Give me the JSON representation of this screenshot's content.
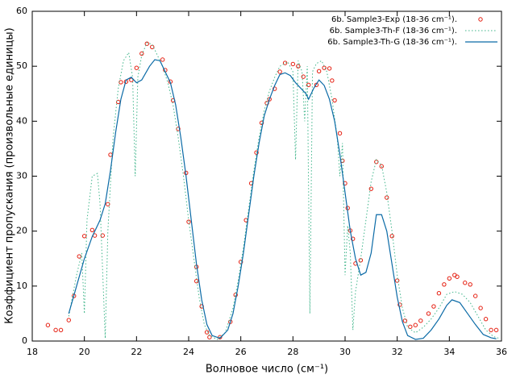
{
  "chart_data": {
    "type": "line",
    "xlabel": "Волновое число (см⁻¹)",
    "ylabel": "Коэффициент пропускания (произвольные единицы)",
    "xlim": [
      18,
      36
    ],
    "xticks": [
      18,
      20,
      22,
      24,
      26,
      28,
      30,
      32,
      34,
      36
    ],
    "ylim": [
      0,
      60
    ],
    "yticks": [
      0,
      10,
      20,
      30,
      40,
      50,
      60
    ],
    "grid": false,
    "legend": "top-right",
    "series": [
      {
        "name": "6b. Sample3-Exp (18-36 cm⁻¹).",
        "color": "#e51e10",
        "style": "points",
        "x": [
          18.6,
          18.9,
          19.1,
          19.4,
          19.6,
          19.8,
          20.0,
          20.3,
          20.4,
          20.7,
          20.9,
          21.0,
          21.3,
          21.4,
          21.6,
          21.8,
          22.0,
          22.2,
          22.4,
          22.6,
          23.0,
          23.1,
          23.3,
          23.4,
          23.6,
          23.9,
          24.0,
          24.3,
          24.3,
          24.5,
          24.7,
          24.8,
          25.2,
          25.6,
          25.8,
          26.0,
          26.2,
          26.4,
          26.6,
          26.8,
          27.0,
          27.1,
          27.3,
          27.5,
          27.7,
          28.0,
          28.2,
          28.4,
          28.6,
          28.9,
          29.0,
          29.2,
          29.4,
          29.5,
          29.6,
          29.8,
          29.9,
          30.0,
          30.1,
          30.2,
          30.3,
          30.4,
          30.6,
          31.0,
          31.2,
          31.4,
          31.6,
          31.8,
          32.0,
          32.1,
          32.3,
          32.5,
          32.7,
          32.9,
          33.2,
          33.4,
          33.6,
          33.8,
          34.0,
          34.2,
          34.3,
          34.6,
          34.8,
          35.0,
          35.2,
          35.4,
          35.6,
          35.8
        ],
        "values": [
          2.9,
          2.0,
          2.0,
          3.8,
          8.2,
          15.4,
          19.1,
          20.2,
          19.2,
          19.2,
          24.9,
          33.9,
          43.5,
          47.1,
          47.2,
          47.5,
          49.7,
          52.3,
          54.1,
          53.5,
          51.2,
          49.3,
          47.2,
          43.8,
          38.6,
          30.6,
          21.7,
          13.5,
          10.9,
          6.3,
          1.6,
          0.7,
          0.7,
          3.5,
          8.4,
          14.4,
          22.0,
          28.7,
          34.3,
          39.7,
          43.3,
          44.0,
          45.9,
          49.0,
          50.6,
          50.4,
          50.0,
          48.1,
          46.6,
          46.6,
          49.1,
          49.7,
          49.6,
          47.4,
          43.8,
          37.8,
          32.8,
          28.7,
          24.2,
          20.1,
          18.6,
          14.1,
          14.7,
          27.7,
          32.6,
          31.8,
          26.1,
          19.1,
          11.0,
          6.6,
          3.7,
          2.6,
          2.9,
          3.7,
          5.0,
          6.3,
          8.7,
          10.3,
          11.4,
          12.0,
          11.7,
          10.6,
          10.3,
          8.2,
          6.0,
          4.0,
          2.0,
          2.0
        ]
      },
      {
        "name": "6b. Sample3-Th-F (18-36 cm⁻¹).",
        "color": "#3fb58a",
        "style": "dotted",
        "x": [
          19.4,
          19.7,
          19.9,
          20.0,
          20.1,
          20.3,
          20.5,
          20.6,
          20.8,
          20.9,
          21.1,
          21.3,
          21.5,
          21.7,
          21.85,
          21.95,
          22.05,
          22.2,
          22.4,
          22.6,
          22.8,
          23.0,
          23.2,
          23.4,
          23.6,
          23.8,
          24.0,
          24.2,
          24.4,
          24.6,
          24.8,
          25.1,
          25.4,
          25.7,
          25.9,
          26.1,
          26.3,
          26.5,
          26.7,
          26.9,
          27.1,
          27.3,
          27.5,
          27.8,
          28.0,
          28.1,
          28.2,
          28.35,
          28.45,
          28.55,
          28.65,
          28.75,
          28.9,
          29.1,
          29.3,
          29.5,
          29.7,
          29.8,
          29.9,
          30.0,
          30.1,
          30.2,
          30.3,
          30.4,
          30.6,
          30.8,
          31.0,
          31.2,
          31.4,
          31.6,
          31.8,
          32.0,
          32.2,
          32.4,
          32.7,
          33.0,
          33.3,
          33.6,
          33.9,
          34.2,
          34.5,
          34.8,
          35.1,
          35.4,
          35.7,
          35.9
        ],
        "values": [
          4.5,
          12,
          16,
          5,
          22,
          30,
          30.5,
          25,
          0.5,
          20,
          37,
          46,
          51,
          52.5,
          48,
          30,
          48,
          52,
          54.3,
          54,
          52,
          50,
          47,
          43,
          37,
          30,
          22,
          15,
          8,
          3,
          1,
          0.3,
          1.5,
          6,
          11,
          17,
          24,
          31,
          37,
          42,
          45.5,
          48,
          50,
          50.8,
          49,
          33,
          51,
          49,
          40,
          50,
          5,
          49,
          50.5,
          51,
          49,
          44,
          37,
          30,
          36,
          12,
          21,
          16,
          2,
          9,
          15,
          22,
          29,
          33,
          32,
          27,
          20,
          12,
          6,
          2.5,
          1.5,
          2.5,
          4,
          6,
          8.5,
          9,
          8.5,
          7,
          4.5,
          2,
          0.8,
          0.5
        ]
      },
      {
        "name": "6b. Sample3-Th-G (18-36 cm⁻¹).",
        "color": "#0a6aa6",
        "style": "solid",
        "x": [
          19.4,
          19.7,
          20.0,
          20.3,
          20.6,
          20.8,
          21.0,
          21.2,
          21.4,
          21.6,
          21.8,
          22.0,
          22.2,
          22.5,
          22.7,
          22.9,
          23.1,
          23.3,
          23.5,
          23.7,
          23.9,
          24.1,
          24.3,
          24.5,
          24.7,
          24.9,
          25.2,
          25.5,
          25.7,
          25.9,
          26.1,
          26.3,
          26.5,
          26.7,
          26.9,
          27.1,
          27.3,
          27.5,
          27.7,
          27.9,
          28.1,
          28.3,
          28.5,
          28.6,
          28.8,
          29.0,
          29.2,
          29.4,
          29.6,
          29.8,
          30.0,
          30.2,
          30.4,
          30.6,
          30.8,
          31.0,
          31.2,
          31.4,
          31.6,
          31.8,
          32.0,
          32.2,
          32.4,
          32.7,
          33.0,
          33.3,
          33.6,
          33.9,
          34.1,
          34.4,
          34.7,
          35.0,
          35.3,
          35.6,
          35.8
        ],
        "values": [
          5,
          10,
          15,
          19,
          22,
          25,
          31,
          38,
          44,
          47.5,
          48,
          47,
          47.5,
          50,
          51.2,
          51,
          49,
          47,
          43,
          37,
          30,
          22,
          14,
          7.5,
          3,
          1,
          0.5,
          2,
          5,
          10,
          16,
          23,
          30,
          36,
          41,
          44,
          46.5,
          48.5,
          48.8,
          48.3,
          47,
          46,
          45,
          44,
          46,
          47.5,
          46.5,
          44,
          40,
          34,
          27,
          20,
          15,
          12,
          12.5,
          16,
          23,
          23,
          20,
          14,
          8,
          3.5,
          1,
          0.3,
          0.5,
          2,
          4,
          6.5,
          7.5,
          7,
          5,
          3,
          1.2,
          0.6,
          0.4
        ]
      }
    ]
  }
}
